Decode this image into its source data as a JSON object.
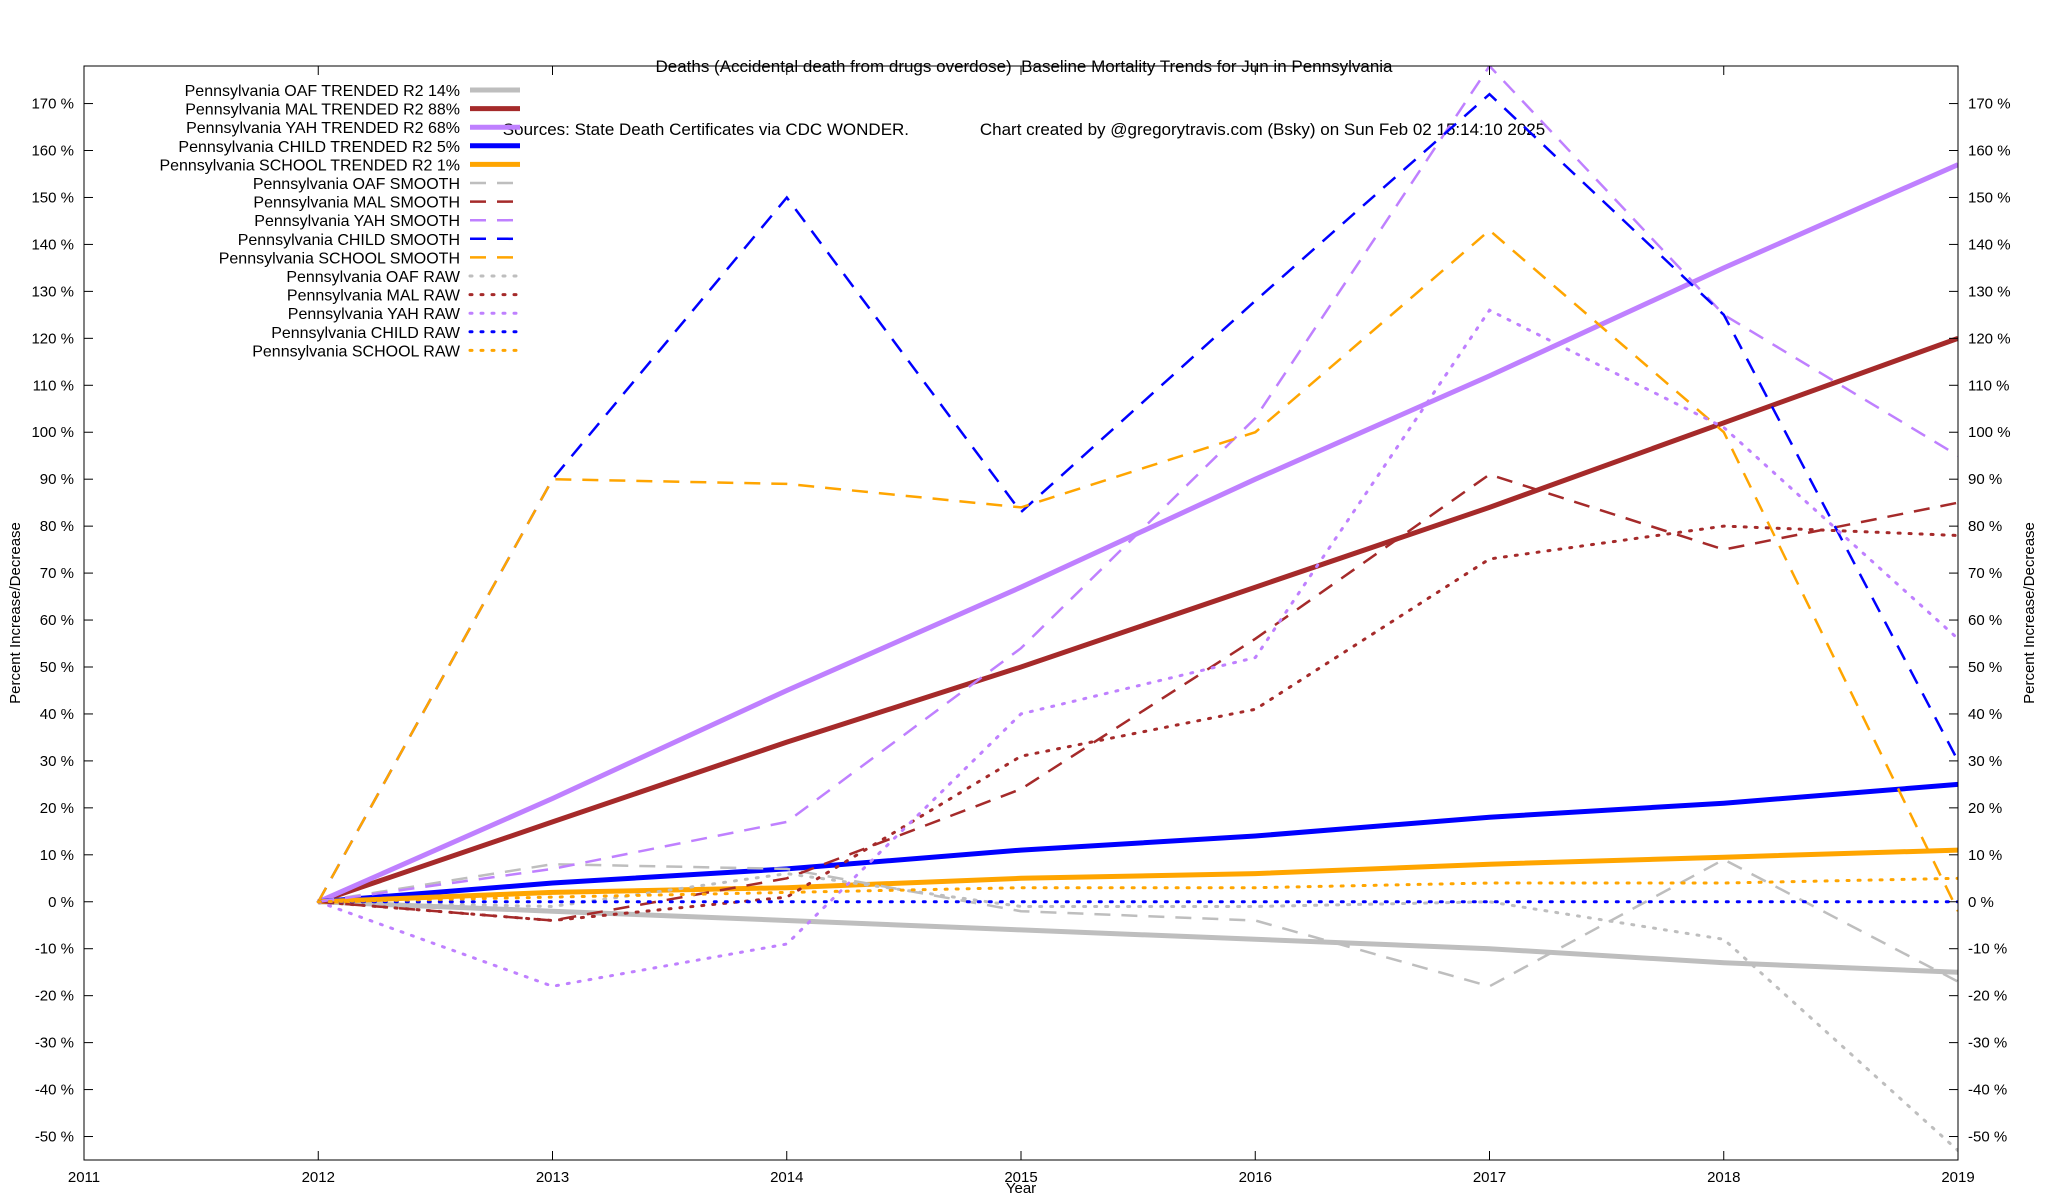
{
  "chart_data": {
    "type": "line",
    "title_line1": "Deaths (Accidental death from drugs overdose)  Baseline Mortality Trends for Jun in Pennsylvania",
    "title_line2": "Sources: State Death Certificates via CDC WONDER.               Chart created by @gregorytravis.com (Bsky) on Sun Feb 02 15:14:10 2025",
    "xlabel": "Year",
    "ylabel": "Percent Increase/Decrease",
    "y2label": "Percent Increase/Decrease",
    "xlim": [
      2011,
      2019
    ],
    "ylim": [
      -55,
      178
    ],
    "x_ticks": [
      2011,
      2012,
      2013,
      2014,
      2015,
      2016,
      2017,
      2018,
      2019
    ],
    "y_ticks": [
      -50,
      -40,
      -30,
      -20,
      -10,
      0,
      10,
      20,
      30,
      40,
      50,
      60,
      70,
      80,
      90,
      100,
      110,
      120,
      130,
      140,
      150,
      160,
      170
    ],
    "y_tick_suffix": " %",
    "grid": false,
    "legend_position": "top-left",
    "x": [
      2012,
      2013,
      2014,
      2015,
      2016,
      2017,
      2018,
      2019
    ],
    "series": [
      {
        "name": "Pennsylvania OAF TRENDED R2  14%",
        "style": "solid",
        "color": "#bebebe",
        "values": [
          0,
          -2,
          -4,
          -6,
          -8,
          -10,
          -13,
          -15
        ]
      },
      {
        "name": "Pennsylvania MAL TRENDED R2  88%",
        "style": "solid",
        "color": "#a52a2a",
        "values": [
          0,
          17,
          34,
          50,
          67,
          84,
          102,
          120
        ]
      },
      {
        "name": "Pennsylvania YAH TRENDED R2  68%",
        "style": "solid",
        "color": "#bf80ff",
        "values": [
          0,
          22,
          45,
          67,
          90,
          112,
          135,
          157
        ]
      },
      {
        "name": "Pennsylvania CHILD TRENDED R2   5%",
        "style": "solid",
        "color": "#0000ff",
        "values": [
          0,
          4,
          7,
          11,
          14,
          18,
          21,
          25
        ]
      },
      {
        "name": "Pennsylvania SCHOOL TRENDED R2   1%",
        "style": "solid",
        "color": "#ffa500",
        "values": [
          0,
          2,
          3,
          5,
          6,
          8,
          9.5,
          11
        ]
      },
      {
        "name": "Pennsylvania OAF SMOOTH",
        "style": "dashed",
        "color": "#bebebe",
        "values": [
          0,
          8,
          7,
          -2,
          -4,
          -18,
          9,
          -17
        ]
      },
      {
        "name": "Pennsylvania MAL SMOOTH",
        "style": "dashed",
        "color": "#a52a2a",
        "values": [
          0,
          -4,
          5,
          24,
          56,
          91,
          75,
          85
        ]
      },
      {
        "name": "Pennsylvania YAH SMOOTH",
        "style": "dashed",
        "color": "#bf80ff",
        "values": [
          0,
          7,
          17,
          54,
          103,
          178,
          125,
          95
        ]
      },
      {
        "name": "Pennsylvania CHILD SMOOTH",
        "style": "dashed",
        "color": "#0000ff",
        "values": [
          0,
          90,
          150,
          83,
          128,
          172,
          125,
          30
        ]
      },
      {
        "name": "Pennsylvania SCHOOL SMOOTH",
        "style": "dashed",
        "color": "#ffa500",
        "values": [
          0,
          90,
          89,
          84,
          100,
          143,
          100,
          -2
        ]
      },
      {
        "name": "Pennsylvania OAF RAW",
        "style": "dotted",
        "color": "#bebebe",
        "values": [
          0,
          -1,
          6,
          -1,
          -1,
          0,
          -8,
          -53
        ]
      },
      {
        "name": "Pennsylvania MAL RAW",
        "style": "dotted",
        "color": "#a52a2a",
        "values": [
          0,
          -4,
          1,
          31,
          41,
          73,
          80,
          78
        ]
      },
      {
        "name": "Pennsylvania YAH RAW",
        "style": "dotted",
        "color": "#bf80ff",
        "values": [
          0,
          -18,
          -9,
          40,
          52,
          126,
          101,
          56
        ]
      },
      {
        "name": "Pennsylvania CHILD RAW",
        "style": "dotted",
        "color": "#0000ff",
        "values": [
          0,
          0,
          0,
          0,
          0,
          0,
          0,
          0
        ]
      },
      {
        "name": "Pennsylvania SCHOOL RAW",
        "style": "dotted",
        "color": "#ffa500",
        "values": [
          0,
          1,
          2,
          3,
          3,
          4,
          4,
          5
        ]
      }
    ]
  }
}
